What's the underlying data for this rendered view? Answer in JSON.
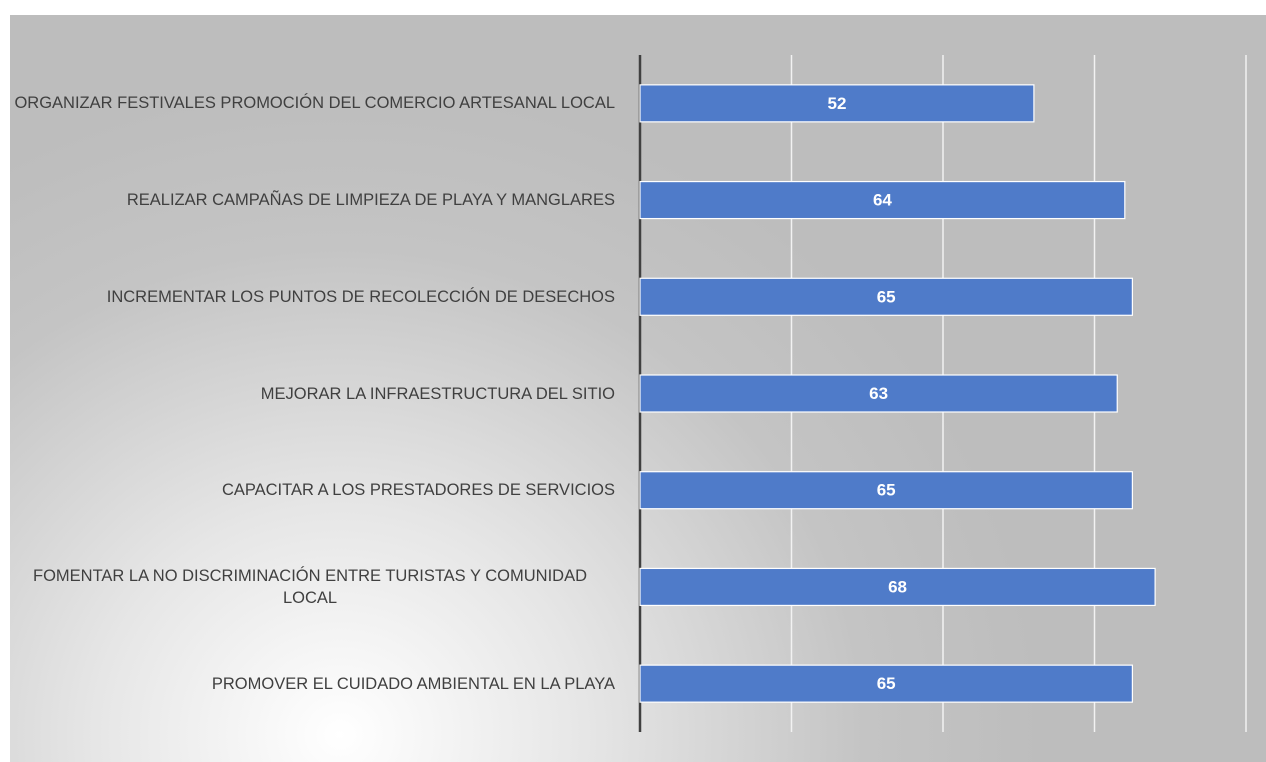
{
  "chart_data": {
    "type": "bar",
    "orientation": "horizontal",
    "categories": [
      "ORGANIZAR FESTIVALES PROMOCIÓN DEL COMERCIO ARTESANAL LOCAL",
      "REALIZAR CAMPAÑAS DE LIMPIEZA DE PLAYA Y MANGLARES",
      "INCREMENTAR LOS PUNTOS DE RECOLECCIÓN DE DESECHOS",
      "MEJORAR LA INFRAESTRUCTURA DEL SITIO",
      "CAPACITAR A LOS PRESTADORES DE SERVICIOS",
      "FOMENTAR LA NO DISCRIMINACIÓN ENTRE TURISTAS Y COMUNIDAD LOCAL",
      "PROMOVER EL CUIDADO AMBIENTAL EN LA PLAYA"
    ],
    "values": [
      52,
      64,
      65,
      63,
      65,
      68,
      65
    ],
    "color": "#4f7bc9",
    "xlim": [
      0,
      80
    ],
    "xticks": [
      0,
      20,
      40,
      60,
      80
    ],
    "grid": true
  }
}
